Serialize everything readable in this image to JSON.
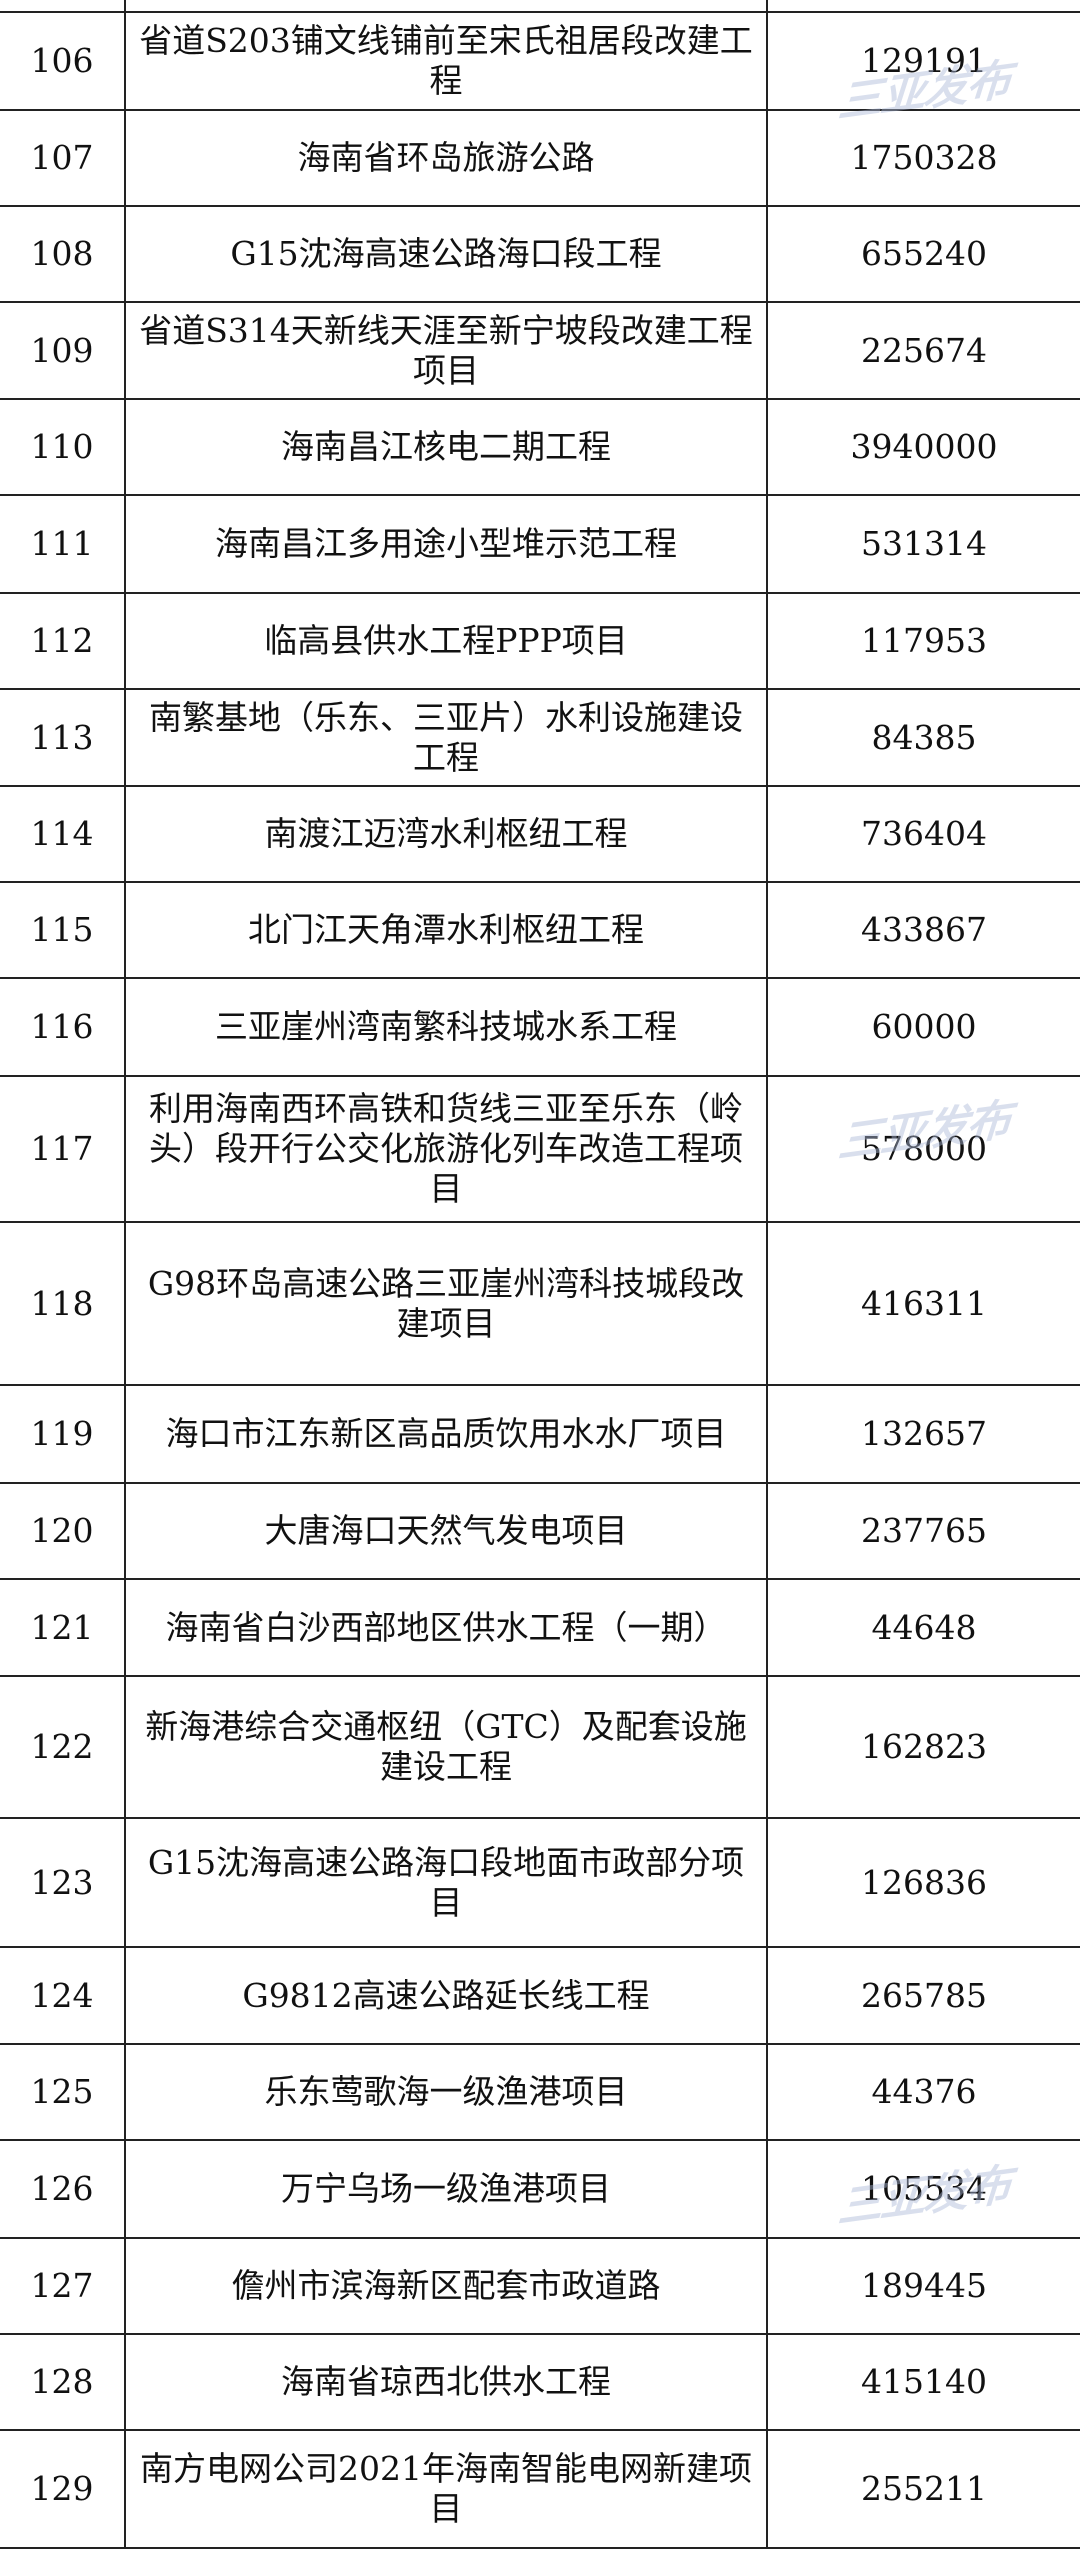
{
  "watermark": "三亚发布",
  "rows": [
    {
      "no": "",
      "name": "",
      "amount": ""
    },
    {
      "no": "106",
      "name": "省道S203铺文线铺前至宋氏祖居段改建工程",
      "amount": "129191"
    },
    {
      "no": "107",
      "name": "海南省环岛旅游公路",
      "amount": "1750328"
    },
    {
      "no": "108",
      "name": "G15沈海高速公路海口段工程",
      "amount": "655240"
    },
    {
      "no": "109",
      "name": "省道S314天新线天涯至新宁坡段改建工程项目",
      "amount": "225674"
    },
    {
      "no": "110",
      "name": "海南昌江核电二期工程",
      "amount": "3940000"
    },
    {
      "no": "111",
      "name": "海南昌江多用途小型堆示范工程",
      "amount": "531314"
    },
    {
      "no": "112",
      "name": "临高县供水工程PPP项目",
      "amount": "117953"
    },
    {
      "no": "113",
      "name": "南繁基地（乐东、三亚片）水利设施建设工程",
      "amount": "84385"
    },
    {
      "no": "114",
      "name": "南渡江迈湾水利枢纽工程",
      "amount": "736404"
    },
    {
      "no": "115",
      "name": "北门江天角潭水利枢纽工程",
      "amount": "433867"
    },
    {
      "no": "116",
      "name": "三亚崖州湾南繁科技城水系工程",
      "amount": "60000"
    },
    {
      "no": "117",
      "name": "利用海南西环高铁和货线三亚至乐东（岭头）段开行公交化旅游化列车改造工程项目",
      "amount": "578000"
    },
    {
      "no": "118",
      "name": "G98环岛高速公路三亚崖州湾科技城段改建项目",
      "amount": "416311"
    },
    {
      "no": "119",
      "name": "海口市江东新区高品质饮用水水厂项目",
      "amount": "132657"
    },
    {
      "no": "120",
      "name": "大唐海口天然气发电项目",
      "amount": "237765"
    },
    {
      "no": "121",
      "name": "海南省白沙西部地区供水工程（一期）",
      "amount": "44648"
    },
    {
      "no": "122",
      "name": "新海港综合交通枢纽（GTC）及配套设施建设工程",
      "amount": "162823"
    },
    {
      "no": "123",
      "name": "G15沈海高速公路海口段地面市政部分项目",
      "amount": "126836"
    },
    {
      "no": "124",
      "name": "G9812高速公路延长线工程",
      "amount": "265785"
    },
    {
      "no": "125",
      "name": "乐东莺歌海一级渔港项目",
      "amount": "44376"
    },
    {
      "no": "126",
      "name": "万宁乌场一级渔港项目",
      "amount": "105534"
    },
    {
      "no": "127",
      "name": "儋州市滨海新区配套市政道路",
      "amount": "189445"
    },
    {
      "no": "128",
      "name": "海南省琼西北供水工程",
      "amount": "415140"
    },
    {
      "no": "129",
      "name": "南方电网公司2021年海南智能电网新建项目",
      "amount": "255211"
    }
  ]
}
